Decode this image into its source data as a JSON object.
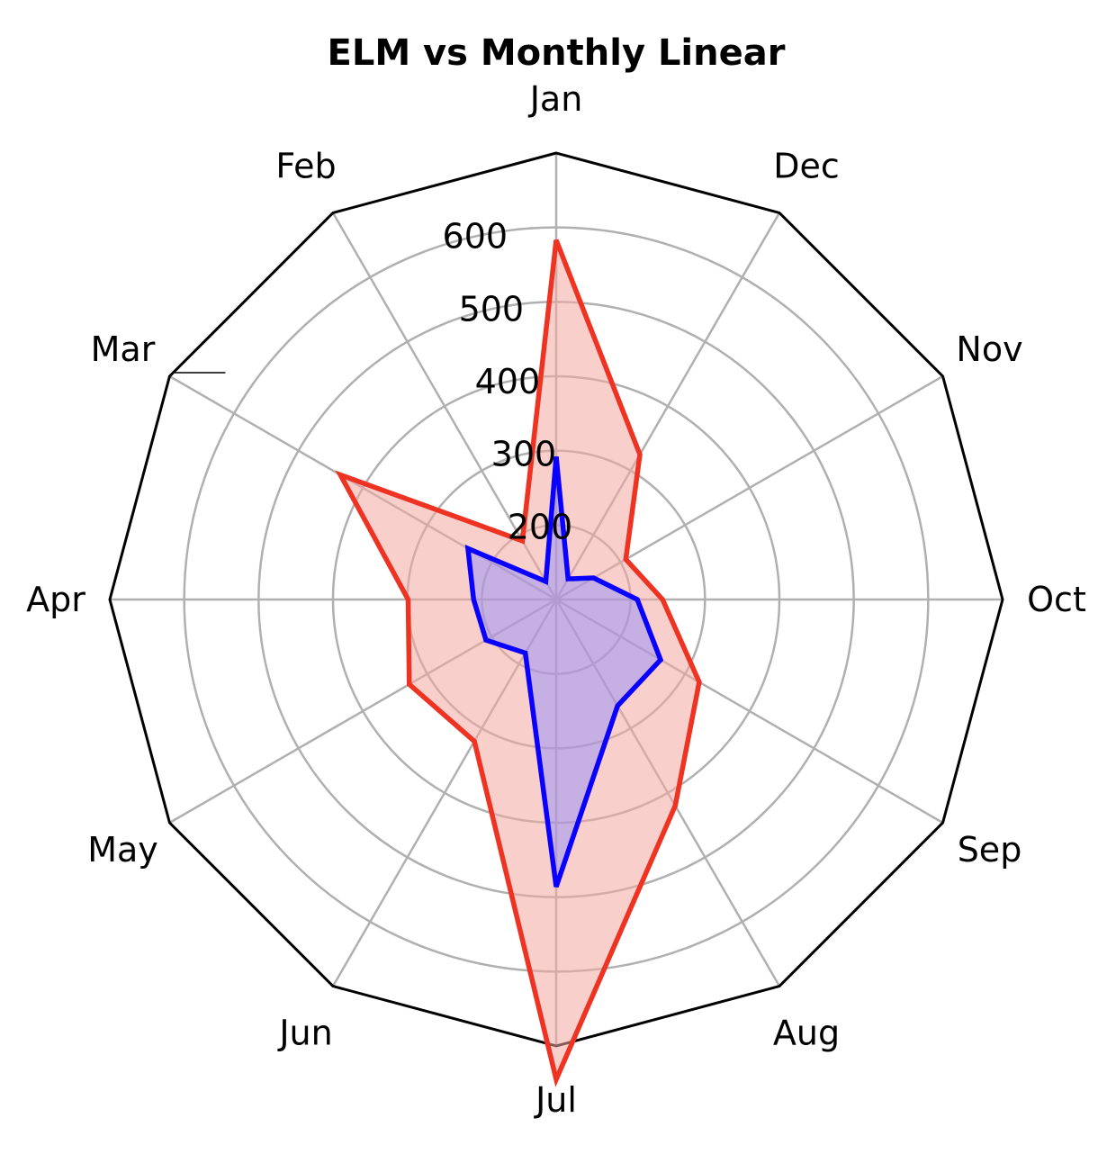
{
  "chart_data": {
    "type": "radar",
    "title": "ELM vs Monthly Linear",
    "categories": [
      "Jan",
      "Feb",
      "Mar",
      "Apr",
      "May",
      "Jun",
      "Jul",
      "Aug",
      "Sep",
      "Oct",
      "Nov",
      "Dec"
    ],
    "r_ticks": [
      200,
      300,
      400,
      500,
      600
    ],
    "rlim": [
      100,
      700
    ],
    "grid": true,
    "series": [
      {
        "values": [
          583,
          191,
          435,
          299,
          328,
          320,
          745,
          420,
          322,
          243,
          208,
          325
        ],
        "color": "#ee3322",
        "fill": "#f4a8a2",
        "fill_opacity": 0.55
      },
      {
        "values": [
          292,
          128,
          237,
          211,
          209,
          183,
          486,
          265,
          262,
          209,
          158,
          132
        ],
        "color": "#0a00ff",
        "fill": "#8888ff",
        "fill_opacity": 0.45
      }
    ]
  }
}
